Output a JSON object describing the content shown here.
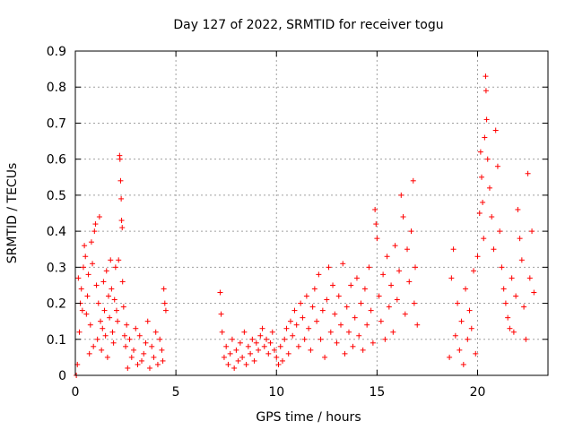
{
  "chart_data": {
    "type": "scatter",
    "title": "Day 127 of 2022, SRMTID for receiver togu",
    "xlabel": "GPS time / hours",
    "ylabel": "SRMTID / TECUs",
    "xlim": [
      0,
      23.5
    ],
    "ylim": [
      0,
      0.9
    ],
    "grid": true,
    "marker": "+",
    "color": "#ff0000",
    "x_ticks": [
      {
        "value": 0,
        "label": "0"
      },
      {
        "value": 5,
        "label": "5"
      },
      {
        "value": 10,
        "label": "10"
      },
      {
        "value": 15,
        "label": "15"
      },
      {
        "value": 20,
        "label": "20"
      }
    ],
    "y_ticks": [
      {
        "value": 0,
        "label": "0"
      },
      {
        "value": 0.1,
        "label": "0.1"
      },
      {
        "value": 0.2,
        "label": "0.2"
      },
      {
        "value": 0.3,
        "label": "0.3"
      },
      {
        "value": 0.4,
        "label": "0.4"
      },
      {
        "value": 0.5,
        "label": "0.5"
      },
      {
        "value": 0.6,
        "label": "0.6"
      },
      {
        "value": 0.7,
        "label": "0.7"
      },
      {
        "value": 0.8,
        "label": "0.8"
      },
      {
        "value": 0.9,
        "label": "0.9"
      }
    ],
    "points": [
      [
        0.05,
        0.0
      ],
      [
        0.1,
        0.03
      ],
      [
        0.15,
        0.27
      ],
      [
        0.2,
        0.12
      ],
      [
        0.25,
        0.2
      ],
      [
        0.3,
        0.24
      ],
      [
        0.35,
        0.18
      ],
      [
        0.4,
        0.3
      ],
      [
        0.45,
        0.36
      ],
      [
        0.5,
        0.33
      ],
      [
        0.55,
        0.17
      ],
      [
        0.6,
        0.22
      ],
      [
        0.65,
        0.28
      ],
      [
        0.7,
        0.06
      ],
      [
        0.75,
        0.14
      ],
      [
        0.8,
        0.37
      ],
      [
        0.85,
        0.31
      ],
      [
        0.9,
        0.08
      ],
      [
        0.95,
        0.4
      ],
      [
        1.0,
        0.42
      ],
      [
        1.05,
        0.25
      ],
      [
        1.1,
        0.1
      ],
      [
        1.15,
        0.2
      ],
      [
        1.2,
        0.44
      ],
      [
        1.25,
        0.15
      ],
      [
        1.3,
        0.07
      ],
      [
        1.35,
        0.13
      ],
      [
        1.4,
        0.26
      ],
      [
        1.45,
        0.18
      ],
      [
        1.5,
        0.11
      ],
      [
        1.55,
        0.29
      ],
      [
        1.6,
        0.05
      ],
      [
        1.65,
        0.22
      ],
      [
        1.7,
        0.16
      ],
      [
        1.75,
        0.32
      ],
      [
        1.8,
        0.24
      ],
      [
        1.85,
        0.12
      ],
      [
        1.9,
        0.09
      ],
      [
        1.95,
        0.21
      ],
      [
        2.0,
        0.3
      ],
      [
        2.05,
        0.18
      ],
      [
        2.1,
        0.15
      ],
      [
        2.15,
        0.32
      ],
      [
        2.2,
        0.61
      ],
      [
        2.22,
        0.6
      ],
      [
        2.25,
        0.54
      ],
      [
        2.28,
        0.49
      ],
      [
        2.3,
        0.43
      ],
      [
        2.33,
        0.41
      ],
      [
        2.35,
        0.26
      ],
      [
        2.4,
        0.19
      ],
      [
        2.45,
        0.11
      ],
      [
        2.5,
        0.08
      ],
      [
        2.55,
        0.14
      ],
      [
        2.6,
        0.02
      ],
      [
        2.7,
        0.1
      ],
      [
        2.8,
        0.05
      ],
      [
        2.9,
        0.07
      ],
      [
        3.0,
        0.13
      ],
      [
        3.1,
        0.03
      ],
      [
        3.2,
        0.11
      ],
      [
        3.3,
        0.04
      ],
      [
        3.4,
        0.06
      ],
      [
        3.5,
        0.09
      ],
      [
        3.6,
        0.15
      ],
      [
        3.7,
        0.02
      ],
      [
        3.8,
        0.08
      ],
      [
        3.9,
        0.05
      ],
      [
        4.0,
        0.12
      ],
      [
        4.1,
        0.03
      ],
      [
        4.2,
        0.1
      ],
      [
        4.3,
        0.07
      ],
      [
        4.35,
        0.04
      ],
      [
        4.4,
        0.24
      ],
      [
        4.45,
        0.2
      ],
      [
        4.5,
        0.18
      ],
      [
        7.2,
        0.23
      ],
      [
        7.25,
        0.17
      ],
      [
        7.3,
        0.12
      ],
      [
        7.4,
        0.05
      ],
      [
        7.5,
        0.08
      ],
      [
        7.6,
        0.03
      ],
      [
        7.7,
        0.06
      ],
      [
        7.8,
        0.1
      ],
      [
        7.9,
        0.02
      ],
      [
        8.0,
        0.07
      ],
      [
        8.1,
        0.04
      ],
      [
        8.2,
        0.09
      ],
      [
        8.3,
        0.05
      ],
      [
        8.4,
        0.12
      ],
      [
        8.5,
        0.03
      ],
      [
        8.6,
        0.08
      ],
      [
        8.7,
        0.06
      ],
      [
        8.8,
        0.1
      ],
      [
        8.9,
        0.04
      ],
      [
        9.0,
        0.09
      ],
      [
        9.1,
        0.07
      ],
      [
        9.2,
        0.11
      ],
      [
        9.3,
        0.13
      ],
      [
        9.4,
        0.08
      ],
      [
        9.5,
        0.1
      ],
      [
        9.6,
        0.06
      ],
      [
        9.7,
        0.09
      ],
      [
        9.8,
        0.12
      ],
      [
        9.9,
        0.07
      ],
      [
        10.0,
        0.05
      ],
      [
        10.1,
        0.03
      ],
      [
        10.2,
        0.08
      ],
      [
        10.3,
        0.04
      ],
      [
        10.4,
        0.1
      ],
      [
        10.5,
        0.13
      ],
      [
        10.6,
        0.06
      ],
      [
        10.7,
        0.15
      ],
      [
        10.8,
        0.11
      ],
      [
        10.9,
        0.18
      ],
      [
        11.0,
        0.14
      ],
      [
        11.1,
        0.08
      ],
      [
        11.2,
        0.2
      ],
      [
        11.3,
        0.16
      ],
      [
        11.4,
        0.1
      ],
      [
        11.5,
        0.22
      ],
      [
        11.6,
        0.13
      ],
      [
        11.7,
        0.07
      ],
      [
        11.8,
        0.19
      ],
      [
        11.9,
        0.24
      ],
      [
        12.0,
        0.15
      ],
      [
        12.1,
        0.28
      ],
      [
        12.2,
        0.1
      ],
      [
        12.3,
        0.18
      ],
      [
        12.4,
        0.05
      ],
      [
        12.5,
        0.21
      ],
      [
        12.6,
        0.3
      ],
      [
        12.7,
        0.12
      ],
      [
        12.8,
        0.25
      ],
      [
        12.9,
        0.17
      ],
      [
        13.0,
        0.09
      ],
      [
        13.1,
        0.22
      ],
      [
        13.2,
        0.14
      ],
      [
        13.3,
        0.31
      ],
      [
        13.4,
        0.06
      ],
      [
        13.5,
        0.19
      ],
      [
        13.6,
        0.12
      ],
      [
        13.7,
        0.25
      ],
      [
        13.8,
        0.08
      ],
      [
        13.9,
        0.16
      ],
      [
        14.0,
        0.27
      ],
      [
        14.1,
        0.11
      ],
      [
        14.2,
        0.2
      ],
      [
        14.3,
        0.07
      ],
      [
        14.4,
        0.24
      ],
      [
        14.5,
        0.14
      ],
      [
        14.6,
        0.3
      ],
      [
        14.7,
        0.18
      ],
      [
        14.8,
        0.09
      ],
      [
        14.9,
        0.46
      ],
      [
        14.95,
        0.42
      ],
      [
        15.0,
        0.38
      ],
      [
        15.1,
        0.22
      ],
      [
        15.2,
        0.15
      ],
      [
        15.3,
        0.28
      ],
      [
        15.4,
        0.1
      ],
      [
        15.5,
        0.33
      ],
      [
        15.6,
        0.19
      ],
      [
        15.7,
        0.25
      ],
      [
        15.8,
        0.12
      ],
      [
        15.9,
        0.36
      ],
      [
        16.0,
        0.21
      ],
      [
        16.1,
        0.29
      ],
      [
        16.2,
        0.5
      ],
      [
        16.3,
        0.44
      ],
      [
        16.4,
        0.17
      ],
      [
        16.5,
        0.35
      ],
      [
        16.6,
        0.26
      ],
      [
        16.7,
        0.4
      ],
      [
        16.8,
        0.54
      ],
      [
        16.85,
        0.2
      ],
      [
        16.9,
        0.3
      ],
      [
        17.0,
        0.14
      ],
      [
        18.6,
        0.05
      ],
      [
        18.7,
        0.27
      ],
      [
        18.8,
        0.35
      ],
      [
        18.9,
        0.11
      ],
      [
        19.0,
        0.2
      ],
      [
        19.1,
        0.07
      ],
      [
        19.2,
        0.15
      ],
      [
        19.3,
        0.03
      ],
      [
        19.4,
        0.24
      ],
      [
        19.5,
        0.1
      ],
      [
        19.6,
        0.18
      ],
      [
        19.7,
        0.13
      ],
      [
        19.8,
        0.29
      ],
      [
        19.9,
        0.06
      ],
      [
        20.0,
        0.33
      ],
      [
        20.1,
        0.45
      ],
      [
        20.15,
        0.62
      ],
      [
        20.2,
        0.55
      ],
      [
        20.25,
        0.48
      ],
      [
        20.3,
        0.38
      ],
      [
        20.35,
        0.66
      ],
      [
        20.4,
        0.83
      ],
      [
        20.42,
        0.79
      ],
      [
        20.45,
        0.71
      ],
      [
        20.5,
        0.6
      ],
      [
        20.6,
        0.52
      ],
      [
        20.7,
        0.44
      ],
      [
        20.8,
        0.35
      ],
      [
        20.9,
        0.68
      ],
      [
        21.0,
        0.58
      ],
      [
        21.1,
        0.4
      ],
      [
        21.2,
        0.3
      ],
      [
        21.3,
        0.24
      ],
      [
        21.4,
        0.2
      ],
      [
        21.5,
        0.16
      ],
      [
        21.6,
        0.13
      ],
      [
        21.7,
        0.27
      ],
      [
        21.8,
        0.12
      ],
      [
        21.9,
        0.22
      ],
      [
        22.0,
        0.46
      ],
      [
        22.1,
        0.38
      ],
      [
        22.2,
        0.32
      ],
      [
        22.3,
        0.19
      ],
      [
        22.4,
        0.1
      ],
      [
        22.5,
        0.56
      ],
      [
        22.6,
        0.27
      ],
      [
        22.7,
        0.4
      ],
      [
        22.8,
        0.23
      ]
    ]
  }
}
